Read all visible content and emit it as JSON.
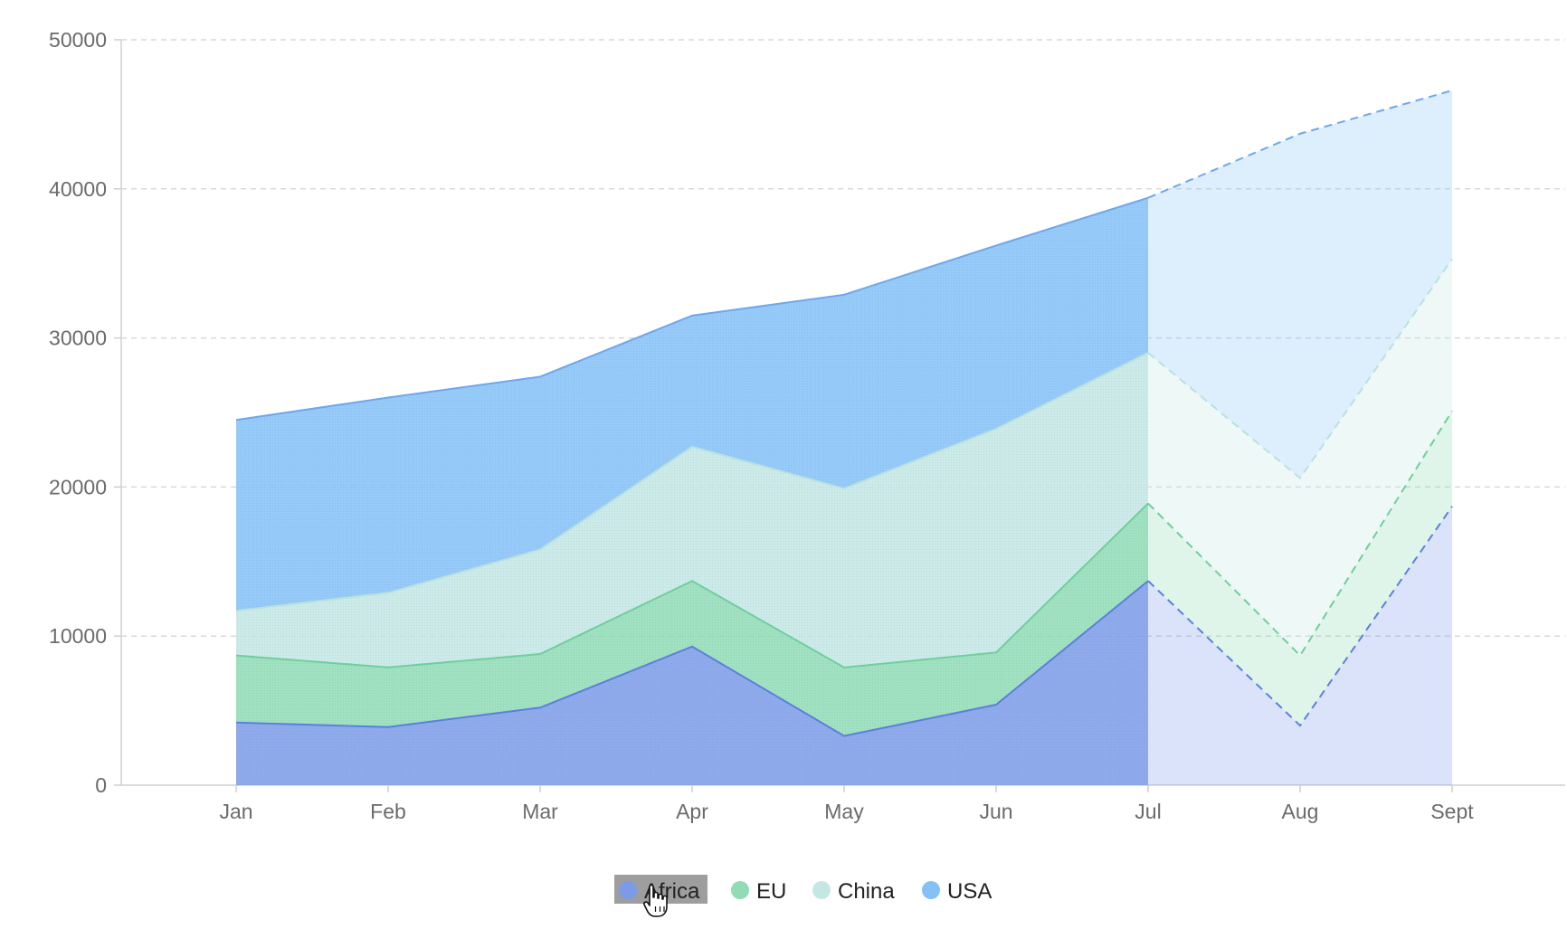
{
  "chart_data": {
    "type": "area",
    "stacked": true,
    "categories": [
      "Jan",
      "Feb",
      "Mar",
      "Apr",
      "May",
      "Jun",
      "Jul",
      "Aug",
      "Sept"
    ],
    "actual_until_index": 6,
    "projection_note": "Aug and Sept rendered as dashed forecast segments",
    "ylim": [
      0,
      50000
    ],
    "yticks": [
      0,
      10000,
      20000,
      30000,
      40000,
      50000
    ],
    "ytick_labels": [
      "0",
      "10000",
      "20000",
      "30000",
      "40000",
      "50000"
    ],
    "grid": true,
    "legend_position": "bottom-center",
    "series": [
      {
        "name": "Africa",
        "color": "#7b9be8",
        "line_color": "#5b80dd",
        "values": [
          4200,
          3900,
          5200,
          9300,
          3300,
          5400,
          13700,
          4000,
          18700
        ]
      },
      {
        "name": "EU",
        "color": "#8fdcb5",
        "line_color": "#6fcf9c",
        "values": [
          4500,
          4000,
          3600,
          4400,
          4600,
          3500,
          5200,
          4700,
          6400
        ]
      },
      {
        "name": "China",
        "color": "#c3e8e4",
        "line_color": "#b9e2dc",
        "values": [
          3000,
          5000,
          7000,
          9000,
          12000,
          15000,
          10100,
          11900,
          10200
        ]
      },
      {
        "name": "USA",
        "color": "#84c1f7",
        "line_color": "#6ea7ec",
        "values": [
          12800,
          13100,
          11600,
          8800,
          13000,
          12300,
          10400,
          23100,
          11300
        ]
      }
    ],
    "highlighted_legend_item": "Africa"
  }
}
